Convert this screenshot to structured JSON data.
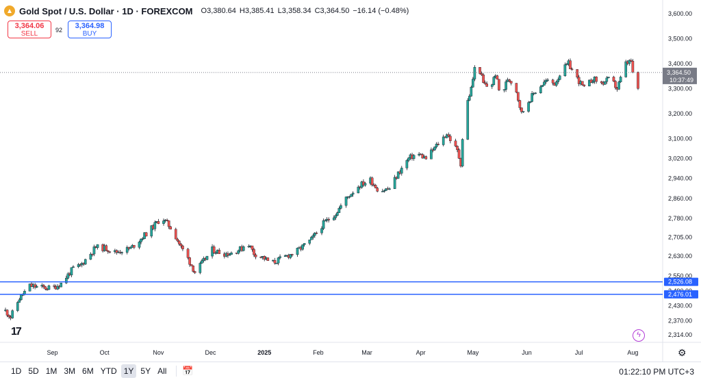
{
  "header": {
    "title": "Gold Spot / U.S. Dollar · 1D · FOREXCOM",
    "ohlc": [
      "O3,380.64",
      "H3,385.41",
      "L3,358.34",
      "C3,364.50",
      "−16.14 (−0.48%)"
    ]
  },
  "trade": {
    "sell_price": "3,364.06",
    "sell_label": "SELL",
    "spread": "92",
    "buy_price": "3,364.98",
    "buy_label": "BUY"
  },
  "bottom_bar": {
    "ranges": [
      "1D",
      "5D",
      "1M",
      "3M",
      "6M",
      "YTD",
      "1Y",
      "5Y",
      "All"
    ],
    "active_range": "1Y",
    "clock": "01:22:10 PM UTC+3"
  },
  "watermark": "17",
  "colors": {
    "up": "#26a69a",
    "down": "#ef5350",
    "wick": "#131722",
    "hline": "#2962ff",
    "price_badge": "#787b86"
  },
  "chart_data": {
    "type": "candlestick",
    "title": "Gold Spot / U.S. Dollar · 1D · FOREXCOM",
    "ylim": [
      2280,
      3620
    ],
    "y_ticks": [
      "3,600.00",
      "3,500.00",
      "3,400.00",
      "3,300.00",
      "3,200.00",
      "3,100.00",
      "3,020.00",
      "2,940.00",
      "2,860.00",
      "2,780.00",
      "2,705.00",
      "2,630.00",
      "2,550.00",
      "2,490.00",
      "2,430.00",
      "2,370.00",
      "2,314.00"
    ],
    "x_labels": [
      "Sep",
      "Oct",
      "Nov",
      "Dec",
      "2025",
      "Feb",
      "Mar",
      "Apr",
      "May",
      "Jun",
      "Jul",
      "Aug"
    ],
    "current_price": "3,364.50",
    "countdown": "10:37:49",
    "horizontal_lines": [
      {
        "value": 2526.08,
        "label": "2,526.08"
      },
      {
        "value": 2476.01,
        "label": "2,476.01"
      }
    ],
    "path_start": "2024-08-05",
    "path_end": "2025-08-04",
    "path": [
      [
        0,
        2410
      ],
      [
        3,
        2385
      ],
      [
        8,
        2460
      ],
      [
        14,
        2510
      ],
      [
        19,
        2505
      ],
      [
        27,
        2500
      ],
      [
        32,
        2520
      ],
      [
        39,
        2580
      ],
      [
        43,
        2590
      ],
      [
        52,
        2665
      ],
      [
        58,
        2660
      ],
      [
        63,
        2645
      ],
      [
        72,
        2660
      ],
      [
        84,
        2740
      ],
      [
        90,
        2785
      ],
      [
        96,
        2735
      ],
      [
        101,
        2665
      ],
      [
        105,
        2620
      ],
      [
        109,
        2565
      ],
      [
        113,
        2600
      ],
      [
        119,
        2655
      ],
      [
        125,
        2640
      ],
      [
        129,
        2640
      ],
      [
        136,
        2660
      ],
      [
        139,
        2690
      ],
      [
        143,
        2640
      ],
      [
        148,
        2625
      ],
      [
        153,
        2600
      ],
      [
        162,
        2630
      ],
      [
        167,
        2645
      ],
      [
        176,
        2695
      ],
      [
        183,
        2760
      ],
      [
        190,
        2800
      ],
      [
        196,
        2860
      ],
      [
        203,
        2910
      ],
      [
        210,
        2935
      ],
      [
        215,
        2890
      ],
      [
        221,
        2900
      ],
      [
        226,
        2960
      ],
      [
        232,
        3020
      ],
      [
        237,
        3040
      ],
      [
        242,
        3020
      ],
      [
        249,
        3080
      ],
      [
        254,
        3120
      ],
      [
        260,
        3050
      ],
      [
        262,
        3000
      ],
      [
        264,
        3200
      ],
      [
        268,
        3300
      ],
      [
        271,
        3420
      ],
      [
        275,
        3320
      ],
      [
        279,
        3300
      ],
      [
        282,
        3360
      ],
      [
        285,
        3260
      ],
      [
        289,
        3340
      ],
      [
        293,
        3320
      ],
      [
        297,
        3200
      ],
      [
        301,
        3250
      ],
      [
        306,
        3300
      ],
      [
        311,
        3330
      ],
      [
        316,
        3320
      ],
      [
        320,
        3370
      ],
      [
        324,
        3400
      ],
      [
        328,
        3350
      ],
      [
        333,
        3300
      ],
      [
        338,
        3340
      ],
      [
        343,
        3320
      ],
      [
        348,
        3340
      ],
      [
        352,
        3300
      ],
      [
        357,
        3400
      ],
      [
        360,
        3410
      ],
      [
        362,
        3300
      ],
      [
        364,
        3300
      ],
      [
        367,
        3340
      ],
      [
        371,
        3364.5
      ]
    ]
  }
}
